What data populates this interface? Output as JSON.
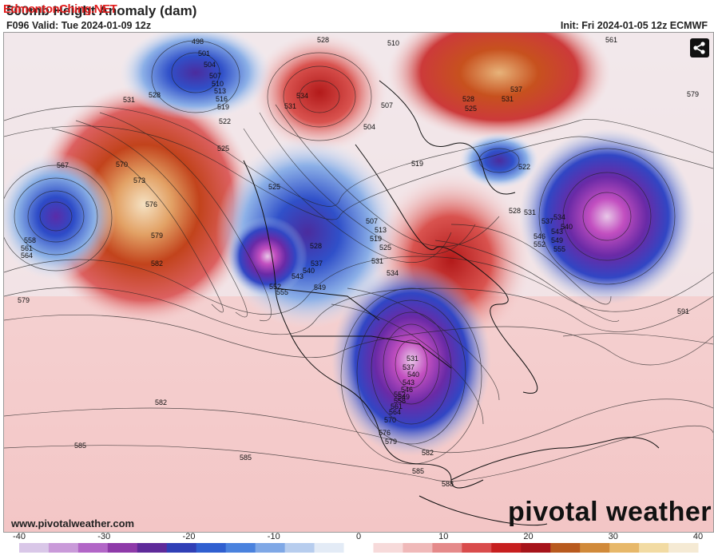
{
  "header": {
    "title": "500mb Height Anomaly (dam)",
    "overlay_text": "EdmontonChing.NET",
    "valid": "F096 Valid: Tue 2024-01-09 12z",
    "init": "Init: Fri 2024-01-05 12z ECMWF"
  },
  "map": {
    "contours": [
      {
        "label": "498",
        "pos": "top-left"
      },
      {
        "label": "501",
        "pos": "top-left"
      },
      {
        "label": "504",
        "pos": "top-left"
      },
      {
        "label": "507",
        "pos": "top-left"
      },
      {
        "label": "510",
        "pos": "top-left"
      },
      {
        "label": "513",
        "pos": "top-left"
      },
      {
        "label": "516",
        "pos": "top-left"
      },
      {
        "label": "519",
        "pos": "top-left"
      },
      {
        "label": "522",
        "pos": "top-left"
      },
      {
        "label": "525",
        "pos": "top-left"
      },
      {
        "label": "528",
        "pos": "top-left"
      },
      {
        "label": "531",
        "pos": "top-left"
      },
      {
        "label": "567",
        "pos": "left"
      },
      {
        "label": "570",
        "pos": "left"
      },
      {
        "label": "573",
        "pos": "left"
      },
      {
        "label": "576",
        "pos": "left"
      },
      {
        "label": "579",
        "pos": "left"
      },
      {
        "label": "582",
        "pos": "left"
      },
      {
        "label": "558",
        "pos": "left"
      },
      {
        "label": "561",
        "pos": "left"
      },
      {
        "label": "564",
        "pos": "left"
      },
      {
        "label": "528",
        "pos": "top-center"
      },
      {
        "label": "534",
        "pos": "top-center"
      },
      {
        "label": "531",
        "pos": "top-center"
      },
      {
        "label": "510",
        "pos": "top-center"
      },
      {
        "label": "507",
        "pos": "top-center"
      },
      {
        "label": "504",
        "pos": "center"
      },
      {
        "label": "525",
        "pos": "west-coast"
      },
      {
        "label": "528",
        "pos": "west-coast"
      },
      {
        "label": "537",
        "pos": "west-coast"
      },
      {
        "label": "540",
        "pos": "west-coast"
      },
      {
        "label": "543",
        "pos": "west-coast"
      },
      {
        "label": "552",
        "pos": "west-coast"
      },
      {
        "label": "549",
        "pos": "west-coast"
      },
      {
        "label": "555",
        "pos": "west-coast"
      },
      {
        "label": "507",
        "pos": "center"
      },
      {
        "label": "513",
        "pos": "center"
      },
      {
        "label": "519",
        "pos": "center"
      },
      {
        "label": "525",
        "pos": "center"
      },
      {
        "label": "531",
        "pos": "center"
      },
      {
        "label": "534",
        "pos": "center"
      },
      {
        "label": "528",
        "pos": "top-right"
      },
      {
        "label": "525",
        "pos": "top-right"
      },
      {
        "label": "531",
        "pos": "top-right"
      },
      {
        "label": "537",
        "pos": "top-right"
      },
      {
        "label": "561",
        "pos": "top-right"
      },
      {
        "label": "579",
        "pos": "top-right"
      },
      {
        "label": "519",
        "pos": "right"
      },
      {
        "label": "522",
        "pos": "right"
      },
      {
        "label": "528",
        "pos": "right"
      },
      {
        "label": "531",
        "pos": "right"
      },
      {
        "label": "534",
        "pos": "right"
      },
      {
        "label": "537",
        "pos": "right"
      },
      {
        "label": "540",
        "pos": "right"
      },
      {
        "label": "543",
        "pos": "right"
      },
      {
        "label": "546",
        "pos": "right"
      },
      {
        "label": "549",
        "pos": "right"
      },
      {
        "label": "552",
        "pos": "right"
      },
      {
        "label": "555",
        "pos": "right"
      },
      {
        "label": "531",
        "pos": "south-low"
      },
      {
        "label": "537",
        "pos": "south-low"
      },
      {
        "label": "540",
        "pos": "south-low"
      },
      {
        "label": "543",
        "pos": "south-low"
      },
      {
        "label": "546",
        "pos": "south-low"
      },
      {
        "label": "549",
        "pos": "south-low"
      },
      {
        "label": "552",
        "pos": "south-low"
      },
      {
        "label": "558",
        "pos": "south-low"
      },
      {
        "label": "561",
        "pos": "south-low"
      },
      {
        "label": "564",
        "pos": "south-low"
      },
      {
        "label": "570",
        "pos": "south-low"
      },
      {
        "label": "576",
        "pos": "south-low"
      },
      {
        "label": "579",
        "pos": "south-low"
      },
      {
        "label": "582",
        "pos": "south"
      },
      {
        "label": "585",
        "pos": "south"
      },
      {
        "label": "588",
        "pos": "south"
      },
      {
        "label": "591",
        "pos": "east"
      },
      {
        "label": "582",
        "pos": "southwest"
      },
      {
        "label": "585",
        "pos": "southwest"
      },
      {
        "label": "585",
        "pos": "southwest-2"
      },
      {
        "label": "579",
        "pos": "far-left"
      }
    ]
  },
  "share_icon": "share-icon",
  "footer": {
    "url": "www.pivotalweather.com",
    "brand": "pivotal weather"
  },
  "colorbar": {
    "ticks": [
      "-40",
      "-30",
      "-20",
      "-10",
      "0",
      "10",
      "20",
      "30",
      "40"
    ],
    "colors": [
      "#d9c7e8",
      "#c99ad9",
      "#b266c7",
      "#8e3aa9",
      "#5e2a9a",
      "#2f3fb6",
      "#2f5fd0",
      "#4a82de",
      "#7fa8e6",
      "#b7cdee",
      "#e3ebf6",
      "#ffffff",
      "#f7dada",
      "#f0b9b9",
      "#e58a8a",
      "#d94c4c",
      "#c71f1f",
      "#a6141a",
      "#b85a1e",
      "#d18a3a",
      "#e7b86a",
      "#f2dba3",
      "#f5ead4"
    ]
  }
}
